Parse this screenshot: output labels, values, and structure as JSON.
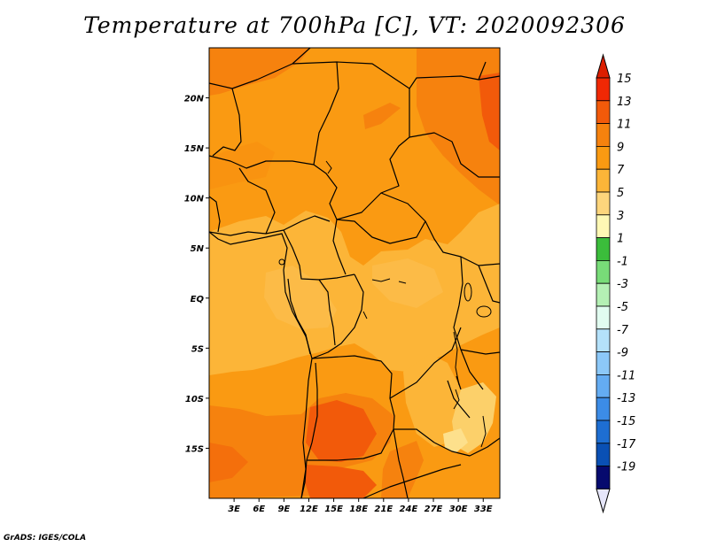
{
  "title": "Temperature at 700hPa [C], VT: 2020092306",
  "credit": "GrADS: IGES/COLA",
  "map": {
    "lon_range": [
      0,
      35
    ],
    "lat_range": [
      -20,
      25
    ],
    "lat_ticks": [
      {
        "value": 20,
        "label": "20N"
      },
      {
        "value": 15,
        "label": "15N"
      },
      {
        "value": 10,
        "label": "10N"
      },
      {
        "value": 5,
        "label": "5N"
      },
      {
        "value": 0,
        "label": "EQ"
      },
      {
        "value": -5,
        "label": "5S"
      },
      {
        "value": -10,
        "label": "10S"
      },
      {
        "value": -15,
        "label": "15S"
      }
    ],
    "lon_ticks": [
      {
        "value": 3,
        "label": "3E"
      },
      {
        "value": 6,
        "label": "6E"
      },
      {
        "value": 9,
        "label": "9E"
      },
      {
        "value": 12,
        "label": "12E"
      },
      {
        "value": 15,
        "label": "15E"
      },
      {
        "value": 18,
        "label": "18E"
      },
      {
        "value": 21,
        "label": "21E"
      },
      {
        "value": 24,
        "label": "24E"
      },
      {
        "value": 27,
        "label": "27E"
      },
      {
        "value": 30,
        "label": "30E"
      },
      {
        "value": 33,
        "label": "33E"
      }
    ]
  },
  "colorbar": {
    "labels": [
      "15",
      "13",
      "11",
      "9",
      "7",
      "5",
      "3",
      "1",
      "-1",
      "-3",
      "-5",
      "-7",
      "-9",
      "-11",
      "-13",
      "-15",
      "-17",
      "-19"
    ],
    "colors": [
      "#f02804",
      "#f25a0a",
      "#f6820e",
      "#fa9a12",
      "#fcb538",
      "#fdd57c",
      "#fef8b4",
      "#3bbd3b",
      "#78dc78",
      "#b4f0b4",
      "#e1fcf0",
      "#b4e1fa",
      "#8cc8f8",
      "#64acf2",
      "#3c8ce6",
      "#1e6ed2",
      "#0a50b4",
      "#060a6e"
    ],
    "top_arrow_color": "#dc1e00",
    "bottom_arrow_color": "#e6e6fa"
  },
  "temperature_regions": [
    {
      "band": "5-7",
      "color": "#fcc45a"
    },
    {
      "band": "7-9",
      "color": "#fcb538"
    },
    {
      "band": "9-11",
      "color": "#fa9a12"
    },
    {
      "band": "11-13",
      "color": "#f6820e"
    },
    {
      "band": "13-15",
      "color": "#f25a0a"
    }
  ]
}
